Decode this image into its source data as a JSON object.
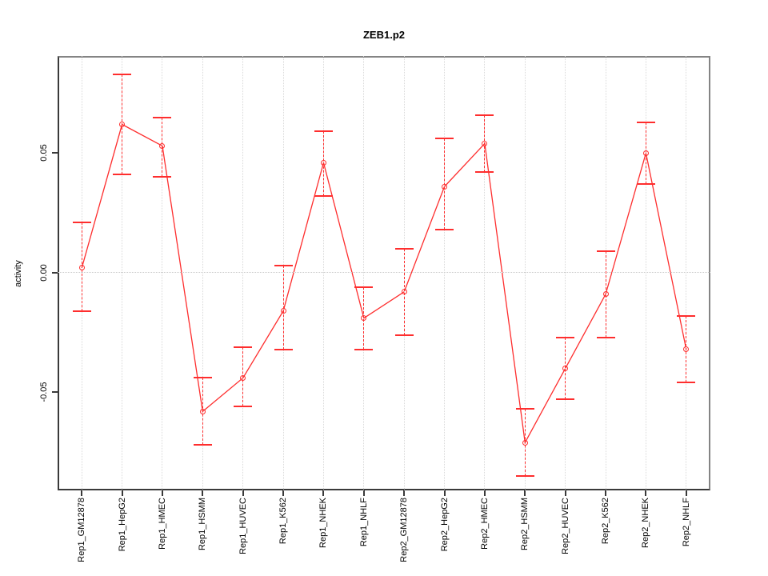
{
  "figure": {
    "title": "ZEB1.p2",
    "ylabel": "activity"
  },
  "chart_data": {
    "type": "line",
    "title": "ZEB1.p2",
    "xlabel": "",
    "ylabel": "activity",
    "legend": null,
    "marker": "open-circle",
    "error_bars": true,
    "categories": [
      "Rep1_GM12878",
      "Rep1_HepG2",
      "Rep1_HMEC",
      "Rep1_HSMM",
      "Rep1_HUVEC",
      "Rep1_K562",
      "Rep1_NHEK",
      "Rep1_NHLF",
      "Rep2_GM12878",
      "Rep2_HepG2",
      "Rep2_HMEC",
      "Rep2_HSMM",
      "Rep2_HUVEC",
      "Rep2_K562",
      "Rep2_NHEK",
      "Rep2_NHLF"
    ],
    "series": [
      {
        "name": "activity",
        "values": [
          0.002,
          0.062,
          0.053,
          -0.058,
          -0.044,
          -0.016,
          0.046,
          -0.019,
          -0.008,
          0.036,
          0.054,
          -0.071,
          -0.04,
          -0.009,
          0.05,
          -0.032
        ],
        "error_low": [
          -0.016,
          0.041,
          0.04,
          -0.072,
          -0.056,
          -0.032,
          0.032,
          -0.032,
          -0.026,
          0.018,
          0.042,
          -0.085,
          -0.053,
          -0.027,
          0.037,
          -0.046
        ],
        "error_high": [
          0.021,
          0.083,
          0.065,
          -0.044,
          -0.031,
          0.003,
          0.059,
          -0.006,
          0.01,
          0.056,
          0.066,
          -0.057,
          -0.027,
          0.009,
          0.063,
          -0.018
        ]
      }
    ],
    "yticks": [
      {
        "label": "0.05",
        "value": 0.05
      },
      {
        "label": "0.00",
        "value": 0.0
      },
      {
        "label": "-0.05",
        "value": -0.05
      }
    ],
    "ylim": [
      -0.091,
      0.0906
    ],
    "grid": {
      "vertical": "per-category-dotted",
      "horizontal_at_zero": true
    },
    "colors": {
      "series": "#fe2e2e",
      "grid": "#d9d9d9",
      "zero_line": "#c8c8c8",
      "box": "#848484",
      "axis": "#3a3a3a",
      "text": "#000000",
      "background": "#ffffff"
    }
  }
}
